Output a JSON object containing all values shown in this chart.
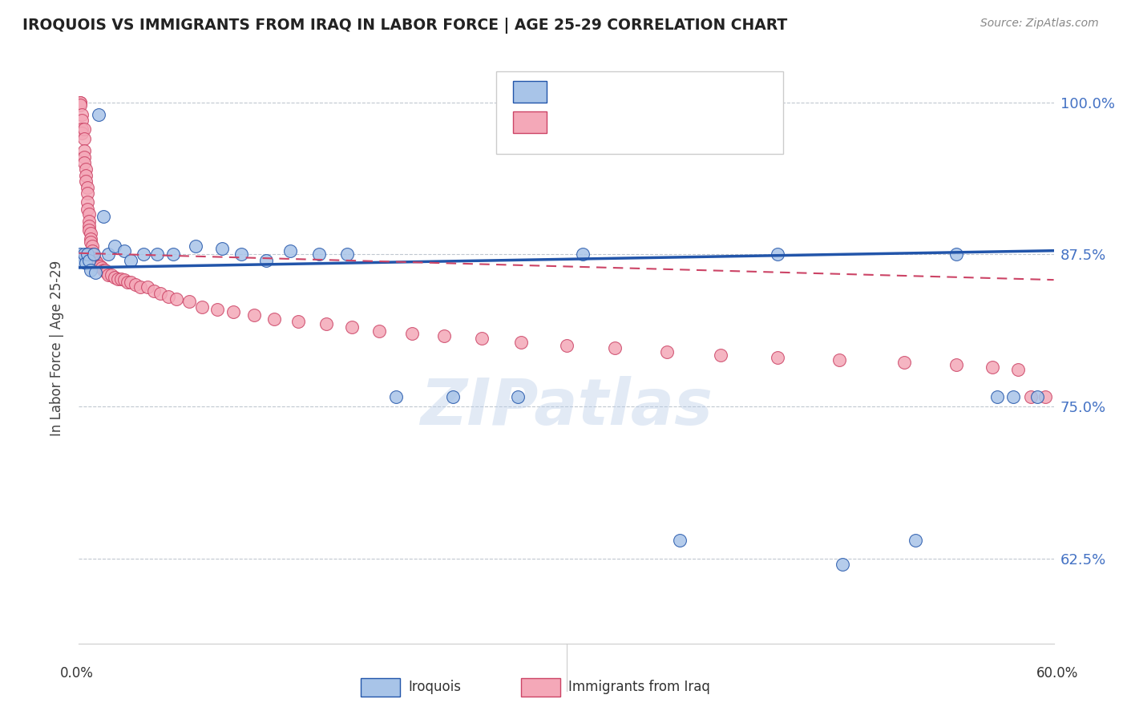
{
  "title": "IROQUOIS VS IMMIGRANTS FROM IRAQ IN LABOR FORCE | AGE 25-29 CORRELATION CHART",
  "source": "Source: ZipAtlas.com",
  "ylabel": "In Labor Force | Age 25-29",
  "ytick_labels": [
    "100.0%",
    "87.5%",
    "75.0%",
    "62.5%"
  ],
  "ytick_values": [
    1.0,
    0.875,
    0.75,
    0.625
  ],
  "xlim": [
    0.0,
    0.6
  ],
  "ylim": [
    0.555,
    1.04
  ],
  "blue_color": "#a8c4e8",
  "pink_color": "#f4a8b8",
  "trend_blue": "#2255aa",
  "trend_pink": "#cc4466",
  "watermark": "ZIPatlas",
  "blue_line_y0": 0.864,
  "blue_line_y1": 0.878,
  "pink_line_y0": 0.876,
  "pink_line_y1": 0.854,
  "iroquois_x": [
    0.001,
    0.002,
    0.003,
    0.004,
    0.005,
    0.006,
    0.007,
    0.009,
    0.01,
    0.012,
    0.015,
    0.018,
    0.022,
    0.028,
    0.032,
    0.04,
    0.048,
    0.058,
    0.072,
    0.088,
    0.1,
    0.115,
    0.13,
    0.148,
    0.165,
    0.195,
    0.23,
    0.27,
    0.31,
    0.37,
    0.43,
    0.47,
    0.515,
    0.54,
    0.565,
    0.575,
    0.59
  ],
  "iroquois_y": [
    0.875,
    0.87,
    0.875,
    0.868,
    0.875,
    0.87,
    0.862,
    0.875,
    0.86,
    0.99,
    0.906,
    0.875,
    0.882,
    0.878,
    0.87,
    0.875,
    0.875,
    0.875,
    0.882,
    0.88,
    0.875,
    0.87,
    0.878,
    0.875,
    0.875,
    0.758,
    0.758,
    0.758,
    0.875,
    0.64,
    0.875,
    0.62,
    0.64,
    0.875,
    0.758,
    0.758,
    0.758
  ],
  "iraq_x": [
    0.001,
    0.001,
    0.001,
    0.002,
    0.002,
    0.002,
    0.002,
    0.003,
    0.003,
    0.003,
    0.003,
    0.003,
    0.004,
    0.004,
    0.004,
    0.005,
    0.005,
    0.005,
    0.005,
    0.006,
    0.006,
    0.006,
    0.006,
    0.007,
    0.007,
    0.007,
    0.008,
    0.008,
    0.008,
    0.009,
    0.009,
    0.01,
    0.01,
    0.011,
    0.011,
    0.012,
    0.013,
    0.014,
    0.015,
    0.016,
    0.017,
    0.018,
    0.02,
    0.022,
    0.024,
    0.026,
    0.028,
    0.03,
    0.032,
    0.035,
    0.038,
    0.042,
    0.046,
    0.05,
    0.055,
    0.06,
    0.068,
    0.076,
    0.085,
    0.095,
    0.108,
    0.12,
    0.135,
    0.152,
    0.168,
    0.185,
    0.205,
    0.225,
    0.248,
    0.272,
    0.3,
    0.33,
    0.362,
    0.395,
    0.43,
    0.468,
    0.508,
    0.54,
    0.562,
    0.578,
    0.586,
    0.595
  ],
  "iraq_y": [
    1.0,
    1.0,
    0.998,
    0.99,
    0.985,
    0.978,
    0.975,
    0.978,
    0.97,
    0.96,
    0.955,
    0.95,
    0.945,
    0.94,
    0.935,
    0.93,
    0.925,
    0.918,
    0.912,
    0.908,
    0.902,
    0.898,
    0.895,
    0.892,
    0.888,
    0.885,
    0.882,
    0.878,
    0.875,
    0.872,
    0.87,
    0.87,
    0.868,
    0.868,
    0.866,
    0.865,
    0.865,
    0.864,
    0.862,
    0.862,
    0.86,
    0.858,
    0.858,
    0.856,
    0.855,
    0.855,
    0.854,
    0.852,
    0.852,
    0.85,
    0.848,
    0.848,
    0.845,
    0.843,
    0.84,
    0.838,
    0.836,
    0.832,
    0.83,
    0.828,
    0.825,
    0.822,
    0.82,
    0.818,
    0.815,
    0.812,
    0.81,
    0.808,
    0.806,
    0.803,
    0.8,
    0.798,
    0.795,
    0.792,
    0.79,
    0.788,
    0.786,
    0.784,
    0.782,
    0.78,
    0.758,
    0.758
  ]
}
